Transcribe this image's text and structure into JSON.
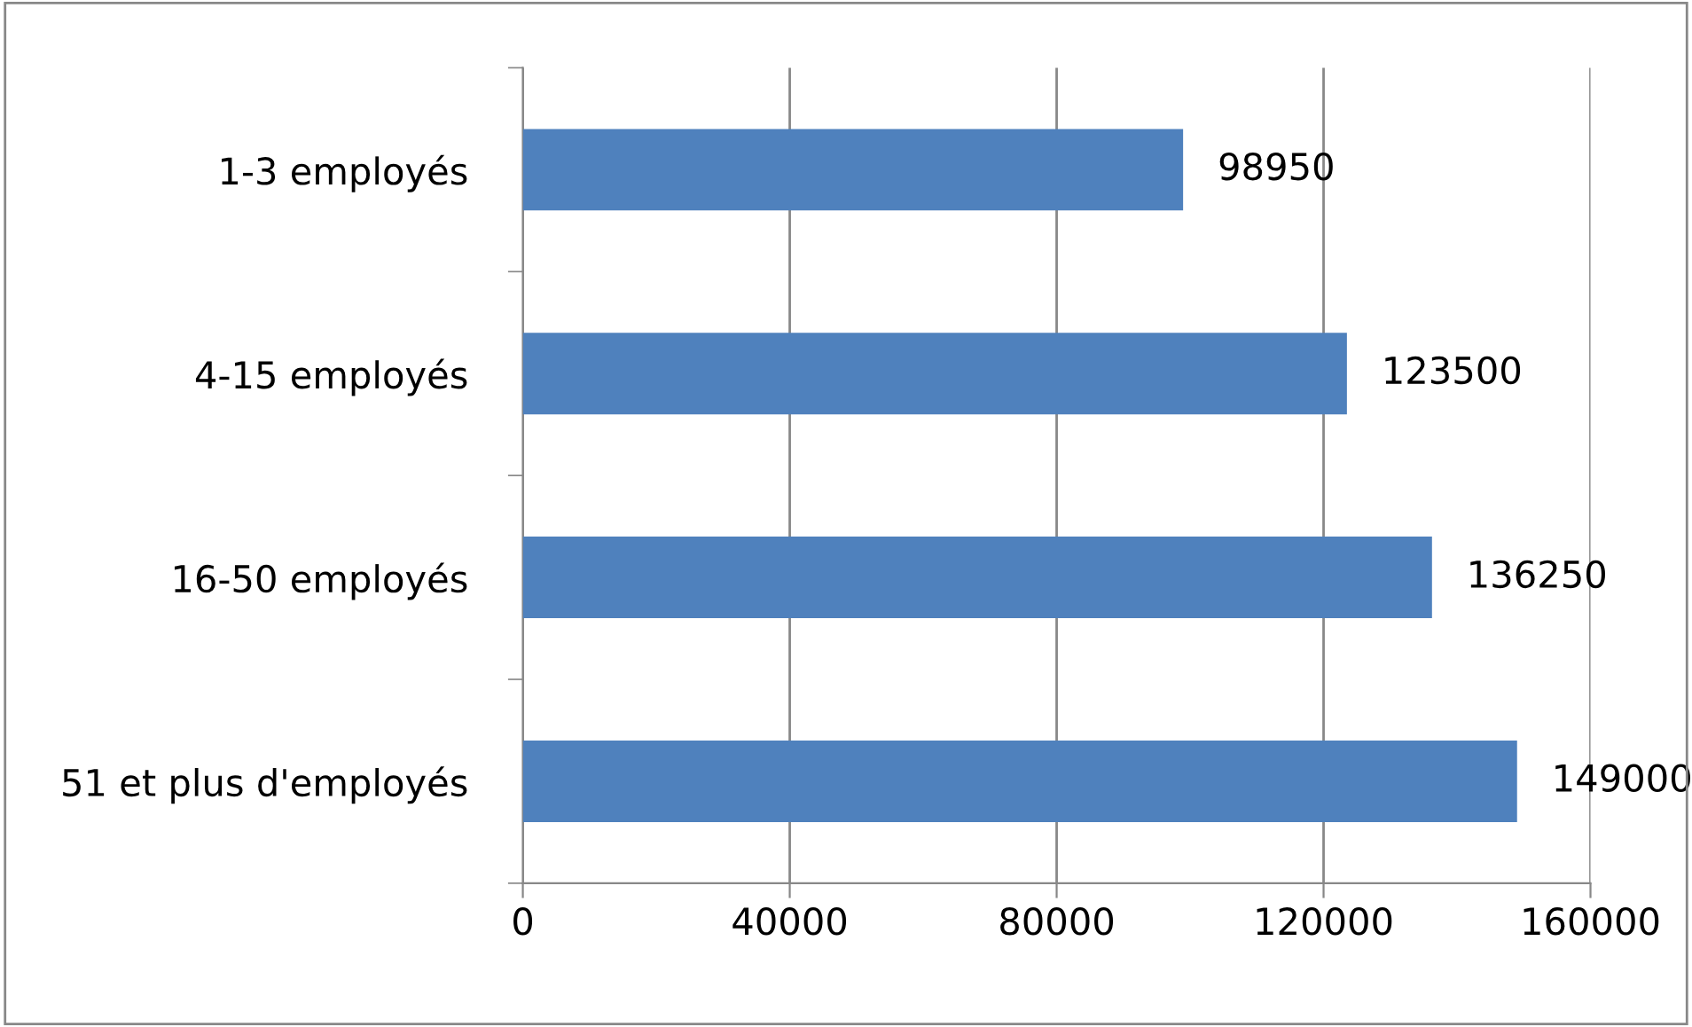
{
  "chart_data": {
    "type": "bar",
    "orientation": "horizontal",
    "categories": [
      "1-3 employés",
      "4-15 employés",
      "16-50 employés",
      "51 et plus d'employés"
    ],
    "values": [
      98950,
      123500,
      136250,
      149000
    ],
    "color": "#4f81bd",
    "xlim": [
      0,
      160000
    ],
    "xticks": [
      0,
      40000,
      80000,
      120000,
      160000
    ],
    "grid": "x",
    "data_labels": true
  }
}
